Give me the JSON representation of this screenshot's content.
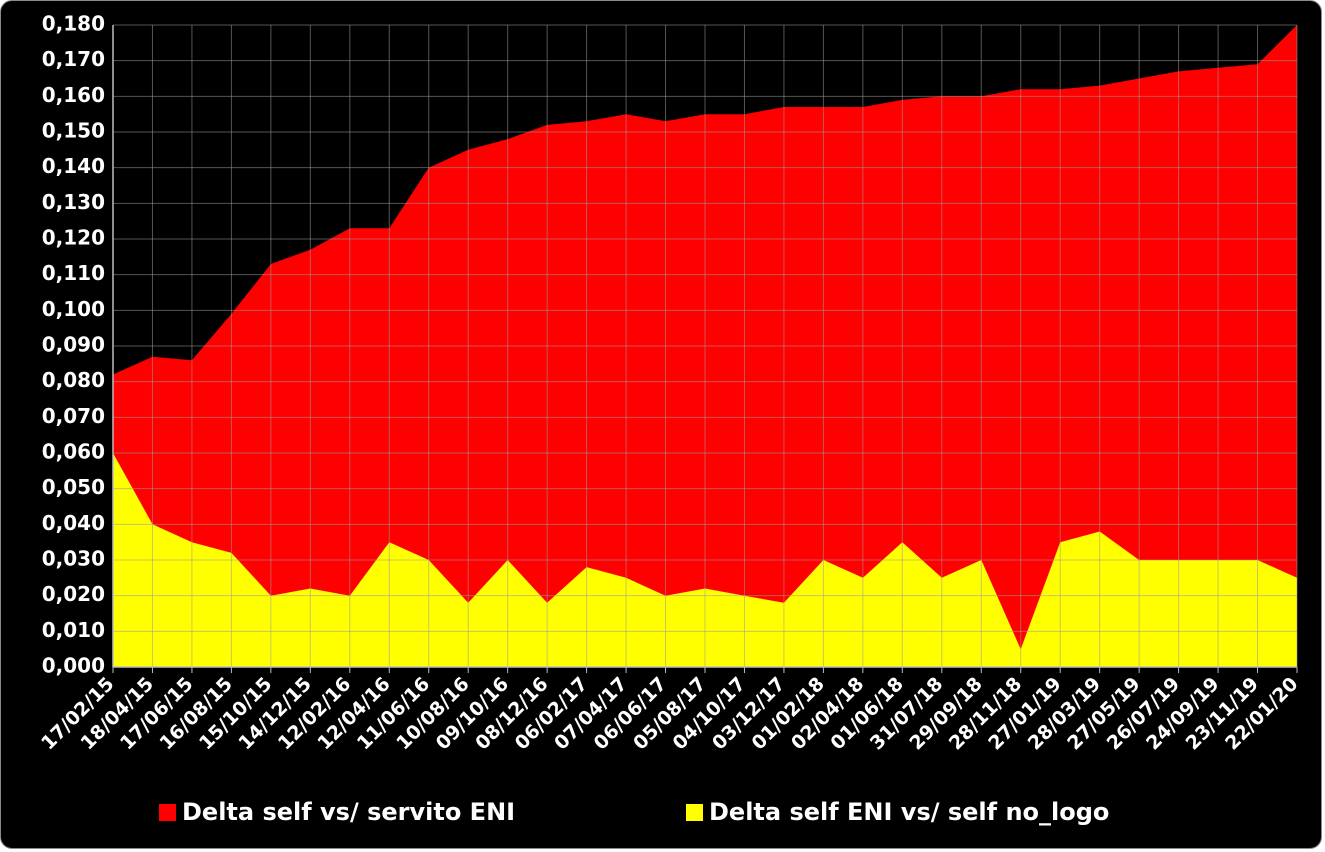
{
  "chart_data": {
    "type": "area",
    "title": "",
    "xlabel": "",
    "ylabel": "",
    "ylim": [
      0,
      0.18
    ],
    "y_ticks": [
      "0,000",
      "0,010",
      "0,020",
      "0,030",
      "0,040",
      "0,050",
      "0,060",
      "0,070",
      "0,080",
      "0,090",
      "0,100",
      "0,110",
      "0,120",
      "0,130",
      "0,140",
      "0,150",
      "0,160",
      "0,170",
      "0,180"
    ],
    "x_tick_labels": [
      "17/02/15",
      "18/04/15",
      "17/06/15",
      "16/08/15",
      "15/10/15",
      "14/12/15",
      "12/02/16",
      "12/04/16",
      "11/06/16",
      "10/08/16",
      "09/10/16",
      "08/12/16",
      "06/02/17",
      "07/04/17",
      "06/06/17",
      "05/08/17",
      "04/10/17",
      "03/12/17",
      "01/02/18",
      "02/04/18",
      "01/06/18",
      "31/07/18",
      "29/09/18",
      "28/11/18",
      "27/01/19",
      "28/03/19",
      "27/05/19",
      "26/07/19",
      "24/09/19",
      "23/11/19",
      "22/01/20"
    ],
    "grid": true,
    "legend_position": "bottom",
    "series": [
      {
        "name": "Delta self vs/ servito ENI",
        "color": "#ff0000",
        "values": [
          0.082,
          0.087,
          0.086,
          0.099,
          0.113,
          0.117,
          0.123,
          0.123,
          0.14,
          0.145,
          0.148,
          0.152,
          0.153,
          0.155,
          0.153,
          0.155,
          0.155,
          0.157,
          0.157,
          0.157,
          0.159,
          0.16,
          0.16,
          0.162,
          0.162,
          0.163,
          0.165,
          0.167,
          0.168,
          0.169,
          0.18
        ]
      },
      {
        "name": "Delta self ENI vs/ self no_logo",
        "color": "#ffff00",
        "values": [
          0.06,
          0.04,
          0.035,
          0.032,
          0.02,
          0.022,
          0.02,
          0.035,
          0.03,
          0.018,
          0.03,
          0.018,
          0.028,
          0.025,
          0.02,
          0.022,
          0.02,
          0.018,
          0.03,
          0.025,
          0.035,
          0.025,
          0.03,
          0.005,
          0.035,
          0.038,
          0.03,
          0.03,
          0.03,
          0.03,
          0.025
        ]
      }
    ]
  }
}
